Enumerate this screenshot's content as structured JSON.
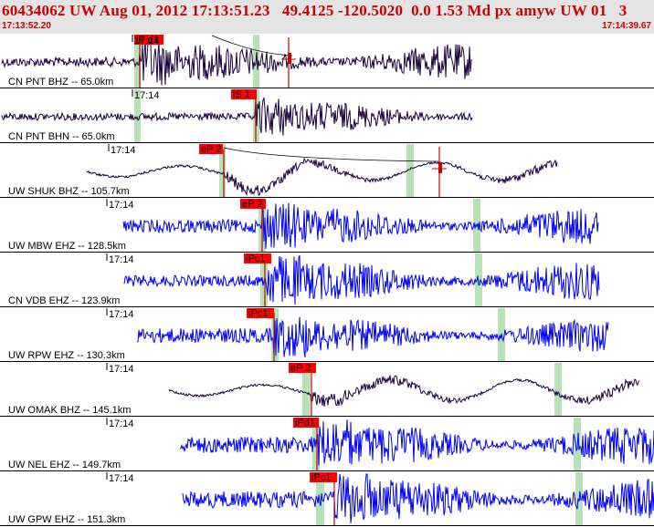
{
  "header": {
    "title": "60434062 UW Aug 01, 2012 17:13:51.23   49.4125 -120.5020  0.0 1.53 Md px amyw UW 01   3",
    "start_time": "17:13:52.20",
    "end_time": "17:14:39.67"
  },
  "colors": {
    "header_text": "#cc0000",
    "header_bg": "#e4e4e4",
    "pick_flag": "#ff0000",
    "short_period_trace": "#0000ff",
    "broadband_trace": "#1a0040",
    "window_band": "#b6e2b6"
  },
  "traces": [
    {
      "label": "CN PNT BHZ -- 65.0km",
      "time_label": "17:14",
      "pick": "iP d1",
      "kind": "broadband"
    },
    {
      "label": "CN PNT BHN -- 65.0km",
      "time_label": "17:14",
      "pick": "iS 1",
      "kind": "broadband"
    },
    {
      "label": "UW SHUK BHZ -- 105.7km",
      "time_label": "17:14",
      "pick": "eP 2",
      "kind": "broadband"
    },
    {
      "label": "UW MBW EHZ -- 128.5km",
      "time_label": "17:14",
      "pick": "eP 2",
      "kind": "short-period"
    },
    {
      "label": "CN VDB EHZ -- 123.9km",
      "time_label": "17:14",
      "pick": "iPc1",
      "kind": "short-period"
    },
    {
      "label": "UW RPW EHZ -- 130.3km",
      "time_label": "17:14",
      "pick": "iPc1",
      "kind": "short-period"
    },
    {
      "label": "UW OMAK BHZ -- 145.1km",
      "time_label": "17:14",
      "pick": "eP 2",
      "kind": "broadband"
    },
    {
      "label": "UW NEL EHZ -- 149.7km",
      "time_label": "17:14",
      "pick": "iPd1",
      "kind": "short-period"
    },
    {
      "label": "UW GPW EHZ -- 151.3km",
      "time_label": "17:14",
      "pick": "iPc1",
      "kind": "short-period"
    }
  ]
}
